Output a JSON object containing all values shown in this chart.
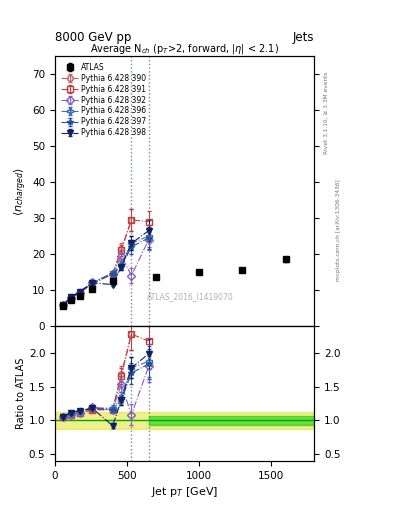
{
  "title_top_left": "8000 GeV pp",
  "title_top_right": "Jets",
  "main_title": "Average N$_{ch}$ (p$_{T}$>2, forward, |$\\eta$| < 2.1)",
  "ylabel_main": "$\\langle n_{charged} \\rangle$",
  "ylabel_ratio": "Ratio to ATLAS",
  "xlabel": "Jet p$_{T}$ [GeV]",
  "watermark": "ATLAS_2016_I1419070",
  "right_label_top": "Rivet 3.1.10, ≥ 3.3M events",
  "right_label_bottom": "mcplots.cern.ch [arXiv:1306.3436]",
  "ylim_main": [
    0,
    75
  ],
  "ylim_ratio": [
    0.4,
    2.4
  ],
  "xlim": [
    0,
    1800
  ],
  "yticks_main": [
    0,
    10,
    20,
    30,
    40,
    50,
    60,
    70
  ],
  "yticks_ratio": [
    0.5,
    1.0,
    1.5,
    2.0
  ],
  "xticks": [
    0,
    500,
    1000,
    1500
  ],
  "vlines": [
    530,
    650
  ],
  "atlas_data": {
    "x": [
      55,
      110,
      170,
      260,
      400,
      700,
      1000,
      1300,
      1600
    ],
    "y": [
      5.5,
      7.2,
      8.3,
      10.2,
      12.5,
      13.5,
      15.0,
      15.5,
      18.5
    ],
    "yerr": [
      0.2,
      0.2,
      0.2,
      0.3,
      0.4,
      0.3,
      0.4,
      0.5,
      0.7
    ],
    "label": "ATLAS",
    "color": "#000000",
    "marker": "s",
    "markersize": 5
  },
  "pythia_series": [
    {
      "label": "Pythia 6.428 390",
      "color": "#c06060",
      "linestyle": "-.",
      "marker": "o",
      "markerfacecolor": "none",
      "x": [
        55,
        110,
        170,
        260,
        400,
        460,
        530
      ],
      "y": [
        5.8,
        7.8,
        9.2,
        11.8,
        14.5,
        21.5,
        29.5
      ],
      "yerr": [
        0.15,
        0.2,
        0.25,
        0.3,
        0.5,
        1.5,
        3.0
      ]
    },
    {
      "label": "Pythia 6.428 391",
      "color": "#c04040",
      "linestyle": "-.",
      "marker": "s",
      "markerfacecolor": "none",
      "x": [
        55,
        110,
        170,
        260,
        400,
        460,
        530,
        650
      ],
      "y": [
        5.8,
        7.8,
        9.2,
        11.8,
        14.5,
        21.0,
        29.5,
        29.0
      ],
      "yerr": [
        0.15,
        0.2,
        0.25,
        0.3,
        0.5,
        1.5,
        3.0,
        3.0
      ]
    },
    {
      "label": "Pythia 6.428 392",
      "color": "#8060c0",
      "linestyle": "-.",
      "marker": "D",
      "markerfacecolor": "none",
      "x": [
        55,
        110,
        170,
        260,
        400,
        460,
        530,
        650
      ],
      "y": [
        5.8,
        7.8,
        9.2,
        12.2,
        14.5,
        19.5,
        14.0,
        24.0
      ],
      "yerr": [
        0.15,
        0.2,
        0.25,
        0.3,
        0.5,
        1.5,
        2.0,
        3.0
      ]
    },
    {
      "label": "Pythia 6.428 396",
      "color": "#4070b0",
      "linestyle": "-.",
      "marker": "P",
      "markerfacecolor": "none",
      "x": [
        55,
        110,
        170,
        260,
        400,
        460,
        530,
        650
      ],
      "y": [
        5.8,
        8.0,
        9.5,
        12.0,
        14.8,
        17.0,
        23.0,
        25.0
      ],
      "yerr": [
        0.15,
        0.2,
        0.25,
        0.3,
        0.5,
        1.0,
        2.0,
        3.0
      ]
    },
    {
      "label": "Pythia 6.428 397",
      "color": "#2050a0",
      "linestyle": "-.",
      "marker": "*",
      "markerfacecolor": "none",
      "x": [
        55,
        110,
        170,
        260,
        400,
        460,
        530,
        650
      ],
      "y": [
        5.8,
        8.0,
        9.5,
        12.0,
        14.5,
        16.5,
        22.0,
        24.5
      ],
      "yerr": [
        0.15,
        0.2,
        0.25,
        0.3,
        0.5,
        1.0,
        2.0,
        3.0
      ]
    },
    {
      "label": "Pythia 6.428 398",
      "color": "#102060",
      "linestyle": "-.",
      "marker": "v",
      "markerfacecolor": "#102060",
      "x": [
        55,
        110,
        170,
        260,
        400,
        460,
        530,
        650
      ],
      "y": [
        5.8,
        8.0,
        9.5,
        12.0,
        11.5,
        16.5,
        23.0,
        26.5
      ],
      "yerr": [
        0.15,
        0.2,
        0.25,
        0.3,
        0.5,
        1.0,
        2.0,
        3.0
      ]
    }
  ],
  "band_yellow": {
    "xmin": 0,
    "xmax": 1800,
    "ymin": 0.87,
    "ymax": 1.13,
    "color": "#dddd00",
    "alpha": 0.45
  },
  "band_green": {
    "xmin": 650,
    "xmax": 1800,
    "ymin": 0.93,
    "ymax": 1.07,
    "color": "#00cc00",
    "alpha": 0.55
  }
}
